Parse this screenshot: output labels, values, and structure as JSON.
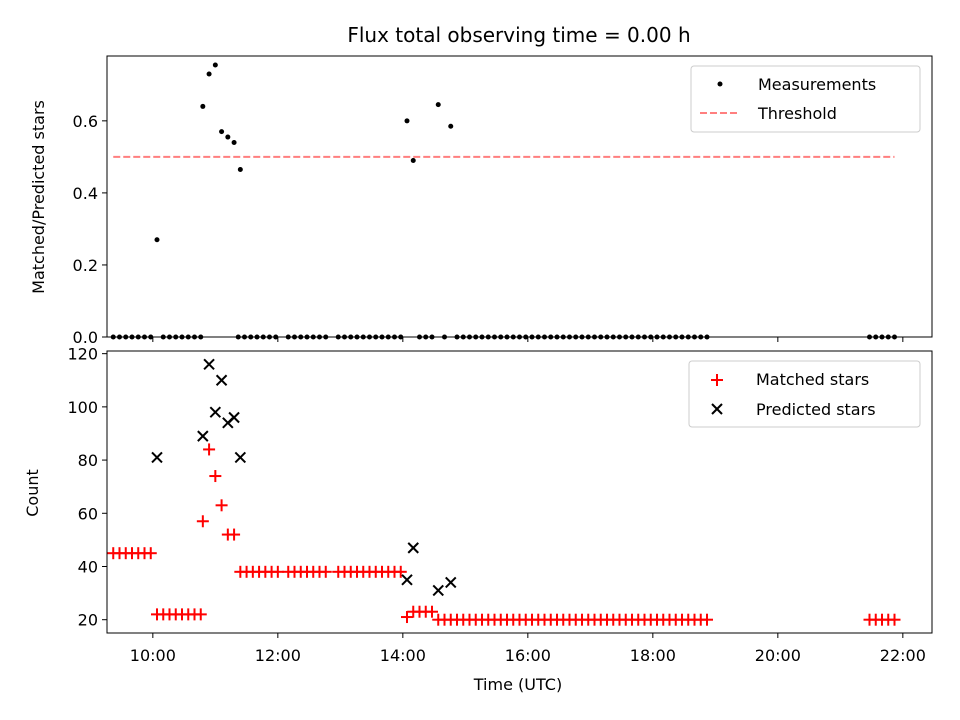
{
  "chart_data": [
    {
      "type": "scatter",
      "title": "Flux total observing time = 0.00 h",
      "xlabel": "",
      "ylabel": "Matched/Predicted stars",
      "xlim": [
        "09:16",
        "22:28"
      ],
      "ylim": [
        0,
        0.78
      ],
      "yticks": [
        "0.0",
        "0.2",
        "0.4",
        "0.6"
      ],
      "legend": {
        "placement": "top-right",
        "entries": [
          "Measurements",
          "Threshold"
        ]
      },
      "threshold": {
        "name": "Threshold",
        "y": 0.5,
        "x_start": "09:22",
        "x_end": "21:52",
        "color": "#ff7f7f"
      },
      "series": [
        {
          "name": "Measurements",
          "color": "#000000",
          "points": [
            [
              "09:22",
              0
            ],
            [
              "09:28",
              0
            ],
            [
              "09:34",
              0
            ],
            [
              "09:40",
              0
            ],
            [
              "09:46",
              0
            ],
            [
              "09:52",
              0
            ],
            [
              "09:58",
              0
            ],
            [
              "10:04",
              0.27
            ],
            [
              "10:10",
              0
            ],
            [
              "10:16",
              0
            ],
            [
              "10:22",
              0
            ],
            [
              "10:28",
              0
            ],
            [
              "10:34",
              0
            ],
            [
              "10:40",
              0
            ],
            [
              "10:46",
              0
            ],
            [
              "10:48",
              0.64
            ],
            [
              "10:54",
              0.73
            ],
            [
              "11:00",
              0.755
            ],
            [
              "11:06",
              0.57
            ],
            [
              "11:12",
              0.555
            ],
            [
              "11:18",
              0.54
            ],
            [
              "11:24",
              0.465
            ],
            [
              "11:22",
              0
            ],
            [
              "11:28",
              0
            ],
            [
              "11:34",
              0
            ],
            [
              "11:40",
              0
            ],
            [
              "11:46",
              0
            ],
            [
              "11:52",
              0
            ],
            [
              "11:58",
              0
            ],
            [
              "12:10",
              0
            ],
            [
              "12:16",
              0
            ],
            [
              "12:22",
              0
            ],
            [
              "12:28",
              0
            ],
            [
              "12:34",
              0
            ],
            [
              "12:40",
              0
            ],
            [
              "12:46",
              0
            ],
            [
              "12:58",
              0
            ],
            [
              "13:04",
              0
            ],
            [
              "13:10",
              0
            ],
            [
              "13:16",
              0
            ],
            [
              "13:22",
              0
            ],
            [
              "13:28",
              0
            ],
            [
              "13:34",
              0
            ],
            [
              "13:40",
              0
            ],
            [
              "13:46",
              0
            ],
            [
              "13:52",
              0
            ],
            [
              "13:58",
              0
            ],
            [
              "14:04",
              0.6
            ],
            [
              "14:10",
              0.49
            ],
            [
              "14:16",
              0
            ],
            [
              "14:22",
              0
            ],
            [
              "14:28",
              0
            ],
            [
              "14:34",
              0.645
            ],
            [
              "14:40",
              0
            ],
            [
              "14:46",
              0.585
            ],
            [
              "14:52",
              0
            ],
            [
              "14:58",
              0
            ],
            [
              "15:04",
              0
            ],
            [
              "15:10",
              0
            ],
            [
              "15:16",
              0
            ],
            [
              "15:22",
              0
            ],
            [
              "15:28",
              0
            ],
            [
              "15:34",
              0
            ],
            [
              "15:40",
              0
            ],
            [
              "15:46",
              0
            ],
            [
              "15:52",
              0
            ],
            [
              "15:58",
              0
            ],
            [
              "16:04",
              0
            ],
            [
              "16:10",
              0
            ],
            [
              "16:16",
              0
            ],
            [
              "16:22",
              0
            ],
            [
              "16:28",
              0
            ],
            [
              "16:34",
              0
            ],
            [
              "16:40",
              0
            ],
            [
              "16:46",
              0
            ],
            [
              "16:52",
              0
            ],
            [
              "16:58",
              0
            ],
            [
              "17:04",
              0
            ],
            [
              "17:10",
              0
            ],
            [
              "17:16",
              0
            ],
            [
              "17:22",
              0
            ],
            [
              "17:28",
              0
            ],
            [
              "17:34",
              0
            ],
            [
              "17:40",
              0
            ],
            [
              "17:46",
              0
            ],
            [
              "17:52",
              0
            ],
            [
              "17:58",
              0
            ],
            [
              "18:04",
              0
            ],
            [
              "18:10",
              0
            ],
            [
              "18:16",
              0
            ],
            [
              "18:22",
              0
            ],
            [
              "18:28",
              0
            ],
            [
              "18:34",
              0
            ],
            [
              "18:40",
              0
            ],
            [
              "18:46",
              0
            ],
            [
              "18:52",
              0
            ],
            [
              "21:28",
              0
            ],
            [
              "21:34",
              0
            ],
            [
              "21:40",
              0
            ],
            [
              "21:46",
              0
            ],
            [
              "21:52",
              0
            ]
          ]
        }
      ]
    },
    {
      "type": "scatter",
      "title": "",
      "xlabel": "Time (UTC)",
      "ylabel": "Count",
      "xlim": [
        "09:16",
        "22:28"
      ],
      "ylim": [
        15,
        121
      ],
      "xticks": [
        "10:00",
        "12:00",
        "14:00",
        "16:00",
        "18:00",
        "20:00",
        "22:00"
      ],
      "yticks": [
        "20",
        "40",
        "60",
        "80",
        "100",
        "120"
      ],
      "legend": {
        "placement": "top-right",
        "entries": [
          "Matched stars",
          "Predicted stars"
        ]
      },
      "series": [
        {
          "name": "Matched stars",
          "color": "#ff0000",
          "marker": "plus",
          "points": [
            [
              "09:22",
              45
            ],
            [
              "09:28",
              45
            ],
            [
              "09:34",
              45
            ],
            [
              "09:40",
              45
            ],
            [
              "09:46",
              45
            ],
            [
              "09:52",
              45
            ],
            [
              "09:58",
              45
            ],
            [
              "10:04",
              22
            ],
            [
              "10:10",
              22
            ],
            [
              "10:16",
              22
            ],
            [
              "10:22",
              22
            ],
            [
              "10:28",
              22
            ],
            [
              "10:34",
              22
            ],
            [
              "10:40",
              22
            ],
            [
              "10:46",
              22
            ],
            [
              "10:48",
              57
            ],
            [
              "10:54",
              84
            ],
            [
              "11:00",
              74
            ],
            [
              "11:06",
              63
            ],
            [
              "11:12",
              52
            ],
            [
              "11:18",
              52
            ],
            [
              "11:24",
              38
            ],
            [
              "11:30",
              38
            ],
            [
              "11:36",
              38
            ],
            [
              "11:42",
              38
            ],
            [
              "11:48",
              38
            ],
            [
              "11:54",
              38
            ],
            [
              "12:00",
              38
            ],
            [
              "12:10",
              38
            ],
            [
              "12:16",
              38
            ],
            [
              "12:22",
              38
            ],
            [
              "12:28",
              38
            ],
            [
              "12:34",
              38
            ],
            [
              "12:40",
              38
            ],
            [
              "12:46",
              38
            ],
            [
              "12:58",
              38
            ],
            [
              "13:04",
              38
            ],
            [
              "13:10",
              38
            ],
            [
              "13:16",
              38
            ],
            [
              "13:22",
              38
            ],
            [
              "13:28",
              38
            ],
            [
              "13:34",
              38
            ],
            [
              "13:40",
              38
            ],
            [
              "13:46",
              38
            ],
            [
              "13:52",
              38
            ],
            [
              "13:58",
              38
            ],
            [
              "14:04",
              21
            ],
            [
              "14:10",
              23
            ],
            [
              "14:16",
              23
            ],
            [
              "14:22",
              23
            ],
            [
              "14:28",
              23
            ],
            [
              "14:34",
              20
            ],
            [
              "14:40",
              20
            ],
            [
              "14:46",
              20
            ],
            [
              "14:52",
              20
            ],
            [
              "14:58",
              20
            ],
            [
              "15:04",
              20
            ],
            [
              "15:10",
              20
            ],
            [
              "15:16",
              20
            ],
            [
              "15:22",
              20
            ],
            [
              "15:28",
              20
            ],
            [
              "15:34",
              20
            ],
            [
              "15:40",
              20
            ],
            [
              "15:46",
              20
            ],
            [
              "15:52",
              20
            ],
            [
              "15:58",
              20
            ],
            [
              "16:04",
              20
            ],
            [
              "16:10",
              20
            ],
            [
              "16:16",
              20
            ],
            [
              "16:22",
              20
            ],
            [
              "16:28",
              20
            ],
            [
              "16:34",
              20
            ],
            [
              "16:40",
              20
            ],
            [
              "16:46",
              20
            ],
            [
              "16:52",
              20
            ],
            [
              "16:58",
              20
            ],
            [
              "17:04",
              20
            ],
            [
              "17:10",
              20
            ],
            [
              "17:16",
              20
            ],
            [
              "17:22",
              20
            ],
            [
              "17:28",
              20
            ],
            [
              "17:34",
              20
            ],
            [
              "17:40",
              20
            ],
            [
              "17:46",
              20
            ],
            [
              "17:52",
              20
            ],
            [
              "17:58",
              20
            ],
            [
              "18:04",
              20
            ],
            [
              "18:10",
              20
            ],
            [
              "18:16",
              20
            ],
            [
              "18:22",
              20
            ],
            [
              "18:28",
              20
            ],
            [
              "18:34",
              20
            ],
            [
              "18:40",
              20
            ],
            [
              "18:46",
              20
            ],
            [
              "18:52",
              20
            ],
            [
              "21:28",
              20
            ],
            [
              "21:34",
              20
            ],
            [
              "21:40",
              20
            ],
            [
              "21:46",
              20
            ],
            [
              "21:52",
              20
            ]
          ]
        },
        {
          "name": "Predicted stars",
          "color": "#000000",
          "marker": "x",
          "points": [
            [
              "10:04",
              81
            ],
            [
              "10:48",
              89
            ],
            [
              "10:54",
              116
            ],
            [
              "11:00",
              98
            ],
            [
              "11:06",
              110
            ],
            [
              "11:12",
              94
            ],
            [
              "11:18",
              96
            ],
            [
              "11:24",
              81
            ],
            [
              "14:04",
              35
            ],
            [
              "14:10",
              47
            ],
            [
              "14:34",
              31
            ],
            [
              "14:46",
              34
            ]
          ]
        }
      ]
    }
  ]
}
